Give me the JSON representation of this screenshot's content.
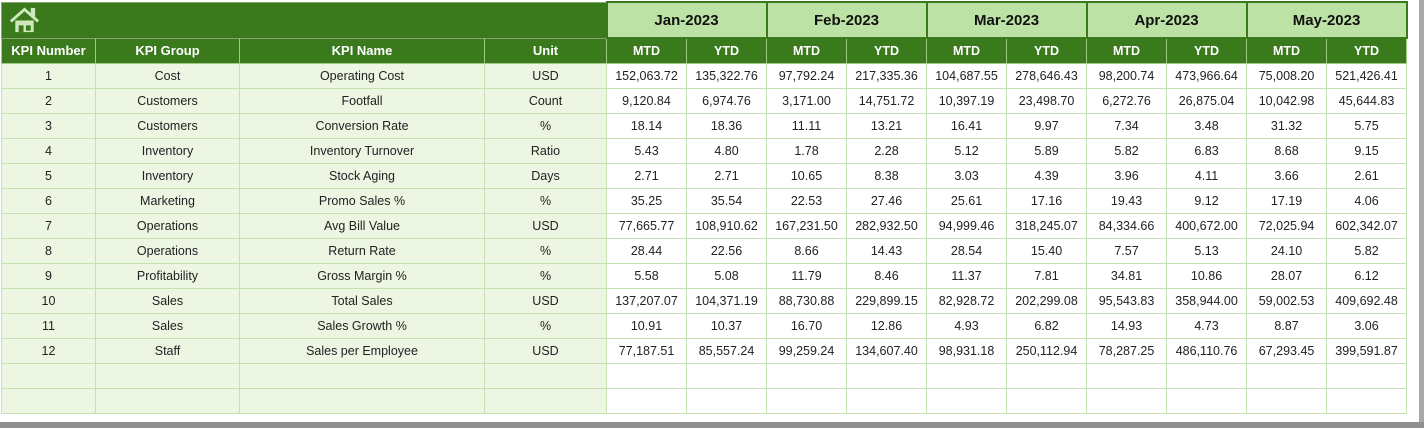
{
  "columns": [
    "KPI Number",
    "KPI Group",
    "KPI Name",
    "Unit"
  ],
  "months": [
    "Jan-2023",
    "Feb-2023",
    "Mar-2023",
    "Apr-2023",
    "May-2023"
  ],
  "sub_headers": [
    "MTD",
    "YTD"
  ],
  "icons": {
    "home": "home-icon"
  },
  "colors": {
    "header_green": "#3a7a1d",
    "month_band_green": "#bde2a5",
    "row_tint_green": "#ecf6e3",
    "grid_green": "#c6e2b2",
    "header_divider_green": "#9fca82",
    "header_text": "#ffffff",
    "data_text": "#222222",
    "home_icon_fill": "#cfe9bd"
  },
  "empty_rows": 2,
  "rows": [
    {
      "number": "1",
      "group": "Cost",
      "name": "Operating Cost",
      "unit": "USD",
      "values": [
        "152,063.72",
        "135,322.76",
        "97,792.24",
        "217,335.36",
        "104,687.55",
        "278,646.43",
        "98,200.74",
        "473,966.64",
        "75,008.20",
        "521,426.41"
      ]
    },
    {
      "number": "2",
      "group": "Customers",
      "name": "Footfall",
      "unit": "Count",
      "values": [
        "9,120.84",
        "6,974.76",
        "3,171.00",
        "14,751.72",
        "10,397.19",
        "23,498.70",
        "6,272.76",
        "26,875.04",
        "10,042.98",
        "45,644.83"
      ]
    },
    {
      "number": "3",
      "group": "Customers",
      "name": "Conversion Rate",
      "unit": "%",
      "values": [
        "18.14",
        "18.36",
        "11.11",
        "13.21",
        "16.41",
        "9.97",
        "7.34",
        "3.48",
        "31.32",
        "5.75"
      ]
    },
    {
      "number": "4",
      "group": "Inventory",
      "name": "Inventory Turnover",
      "unit": "Ratio",
      "values": [
        "5.43",
        "4.80",
        "1.78",
        "2.28",
        "5.12",
        "5.89",
        "5.82",
        "6.83",
        "8.68",
        "9.15"
      ]
    },
    {
      "number": "5",
      "group": "Inventory",
      "name": "Stock Aging",
      "unit": "Days",
      "values": [
        "2.71",
        "2.71",
        "10.65",
        "8.38",
        "3.03",
        "4.39",
        "3.96",
        "4.11",
        "3.66",
        "2.61"
      ]
    },
    {
      "number": "6",
      "group": "Marketing",
      "name": "Promo Sales %",
      "unit": "%",
      "values": [
        "35.25",
        "35.54",
        "22.53",
        "27.46",
        "25.61",
        "17.16",
        "19.43",
        "9.12",
        "17.19",
        "4.06"
      ]
    },
    {
      "number": "7",
      "group": "Operations",
      "name": "Avg Bill Value",
      "unit": "USD",
      "values": [
        "77,665.77",
        "108,910.62",
        "167,231.50",
        "282,932.50",
        "94,999.46",
        "318,245.07",
        "84,334.66",
        "400,672.00",
        "72,025.94",
        "602,342.07"
      ]
    },
    {
      "number": "8",
      "group": "Operations",
      "name": "Return Rate",
      "unit": "%",
      "values": [
        "28.44",
        "22.56",
        "8.66",
        "14.43",
        "28.54",
        "15.40",
        "7.57",
        "5.13",
        "24.10",
        "5.82"
      ]
    },
    {
      "number": "9",
      "group": "Profitability",
      "name": "Gross Margin %",
      "unit": "%",
      "values": [
        "5.58",
        "5.08",
        "11.79",
        "8.46",
        "11.37",
        "7.81",
        "34.81",
        "10.86",
        "28.07",
        "6.12"
      ]
    },
    {
      "number": "10",
      "group": "Sales",
      "name": "Total Sales",
      "unit": "USD",
      "values": [
        "137,207.07",
        "104,371.19",
        "88,730.88",
        "229,899.15",
        "82,928.72",
        "202,299.08",
        "95,543.83",
        "358,944.00",
        "59,002.53",
        "409,692.48"
      ]
    },
    {
      "number": "11",
      "group": "Sales",
      "name": "Sales Growth %",
      "unit": "%",
      "values": [
        "10.91",
        "10.37",
        "16.70",
        "12.86",
        "4.93",
        "6.82",
        "14.93",
        "4.73",
        "8.87",
        "3.06"
      ]
    },
    {
      "number": "12",
      "group": "Staff",
      "name": "Sales per Employee",
      "unit": "USD",
      "values": [
        "77,187.51",
        "85,557.24",
        "99,259.24",
        "134,607.40",
        "98,931.18",
        "250,112.94",
        "78,287.25",
        "486,110.76",
        "67,293.45",
        "399,591.87"
      ]
    }
  ]
}
